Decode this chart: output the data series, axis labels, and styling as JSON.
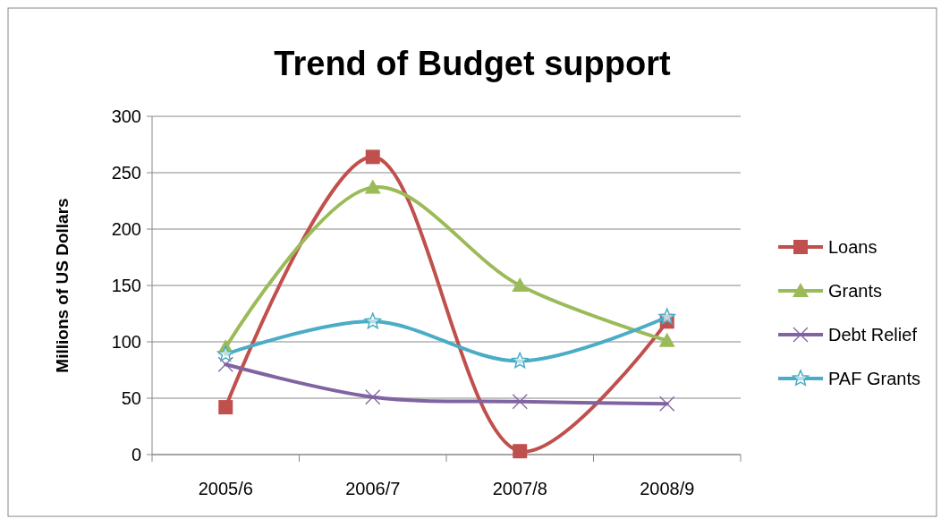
{
  "chart_data": {
    "type": "line",
    "title": "Trend  of Budget support",
    "ylabel": "Millions of US Dollars",
    "categories": [
      "2005/6",
      "2006/7",
      "2007/8",
      "2008/9"
    ],
    "ylim": [
      0,
      300
    ],
    "yticks": [
      0,
      50,
      100,
      150,
      200,
      250,
      300
    ],
    "grid": "y",
    "legend": "right",
    "line_style": "solid",
    "series": [
      {
        "name": "Loans",
        "color": "#c0504d",
        "marker": "square",
        "values": [
          42,
          264,
          3,
          118
        ]
      },
      {
        "name": "Grants",
        "color": "#9bbb59",
        "marker": "triangle",
        "values": [
          95,
          237,
          150,
          101
        ]
      },
      {
        "name": "Debt Relief",
        "color": "#8064a2",
        "marker": "cross",
        "values": [
          80,
          51,
          47,
          45
        ]
      },
      {
        "name": "PAF Grants",
        "color": "#4bacc6",
        "marker": "star",
        "values": [
          89,
          118,
          83,
          122
        ]
      }
    ]
  }
}
